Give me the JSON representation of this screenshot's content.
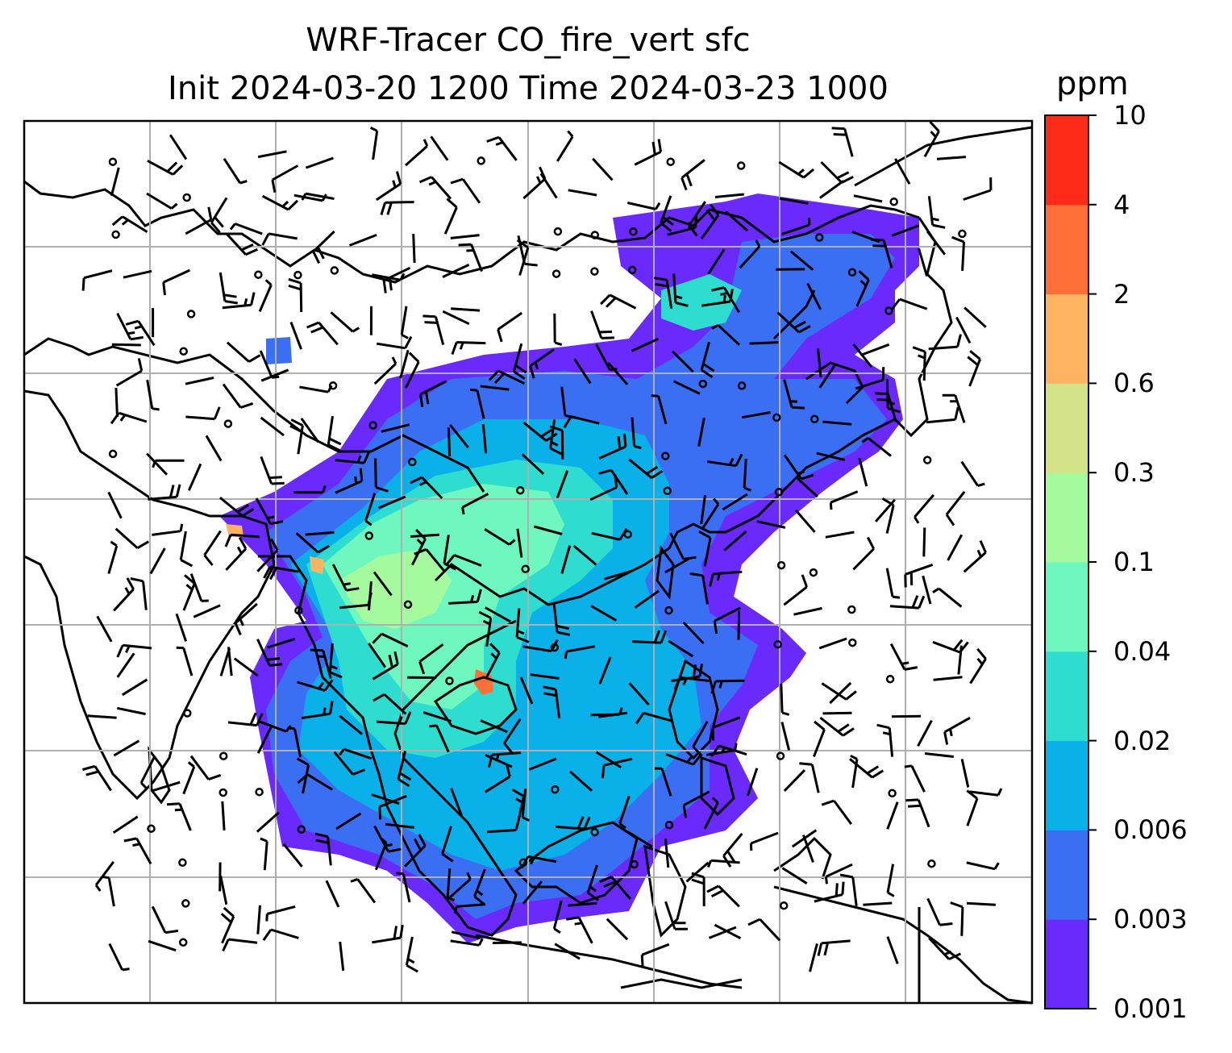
{
  "title_line1": "WRF-Tracer CO_fire_vert sfc",
  "title_line2": "Init 2024-03-20 1200 Time 2024-03-23 1000",
  "colorbar": {
    "unit": "ppm",
    "levels": [
      "0.001",
      "0.003",
      "0.006",
      "0.02",
      "0.04",
      "0.1",
      "0.3",
      "0.6",
      "2",
      "4",
      "10"
    ],
    "colors": [
      "#6a2afd",
      "#3a6ff4",
      "#0ab0e8",
      "#2fdcd0",
      "#6ef7be",
      "#a4fa9c",
      "#d4e288",
      "#fdb361",
      "#ff7038",
      "#ff2a18"
    ]
  },
  "map": {
    "grid": true,
    "legend_position": "right",
    "coastline_color": "#000000",
    "gridline_color": "#b0b0b0"
  }
}
